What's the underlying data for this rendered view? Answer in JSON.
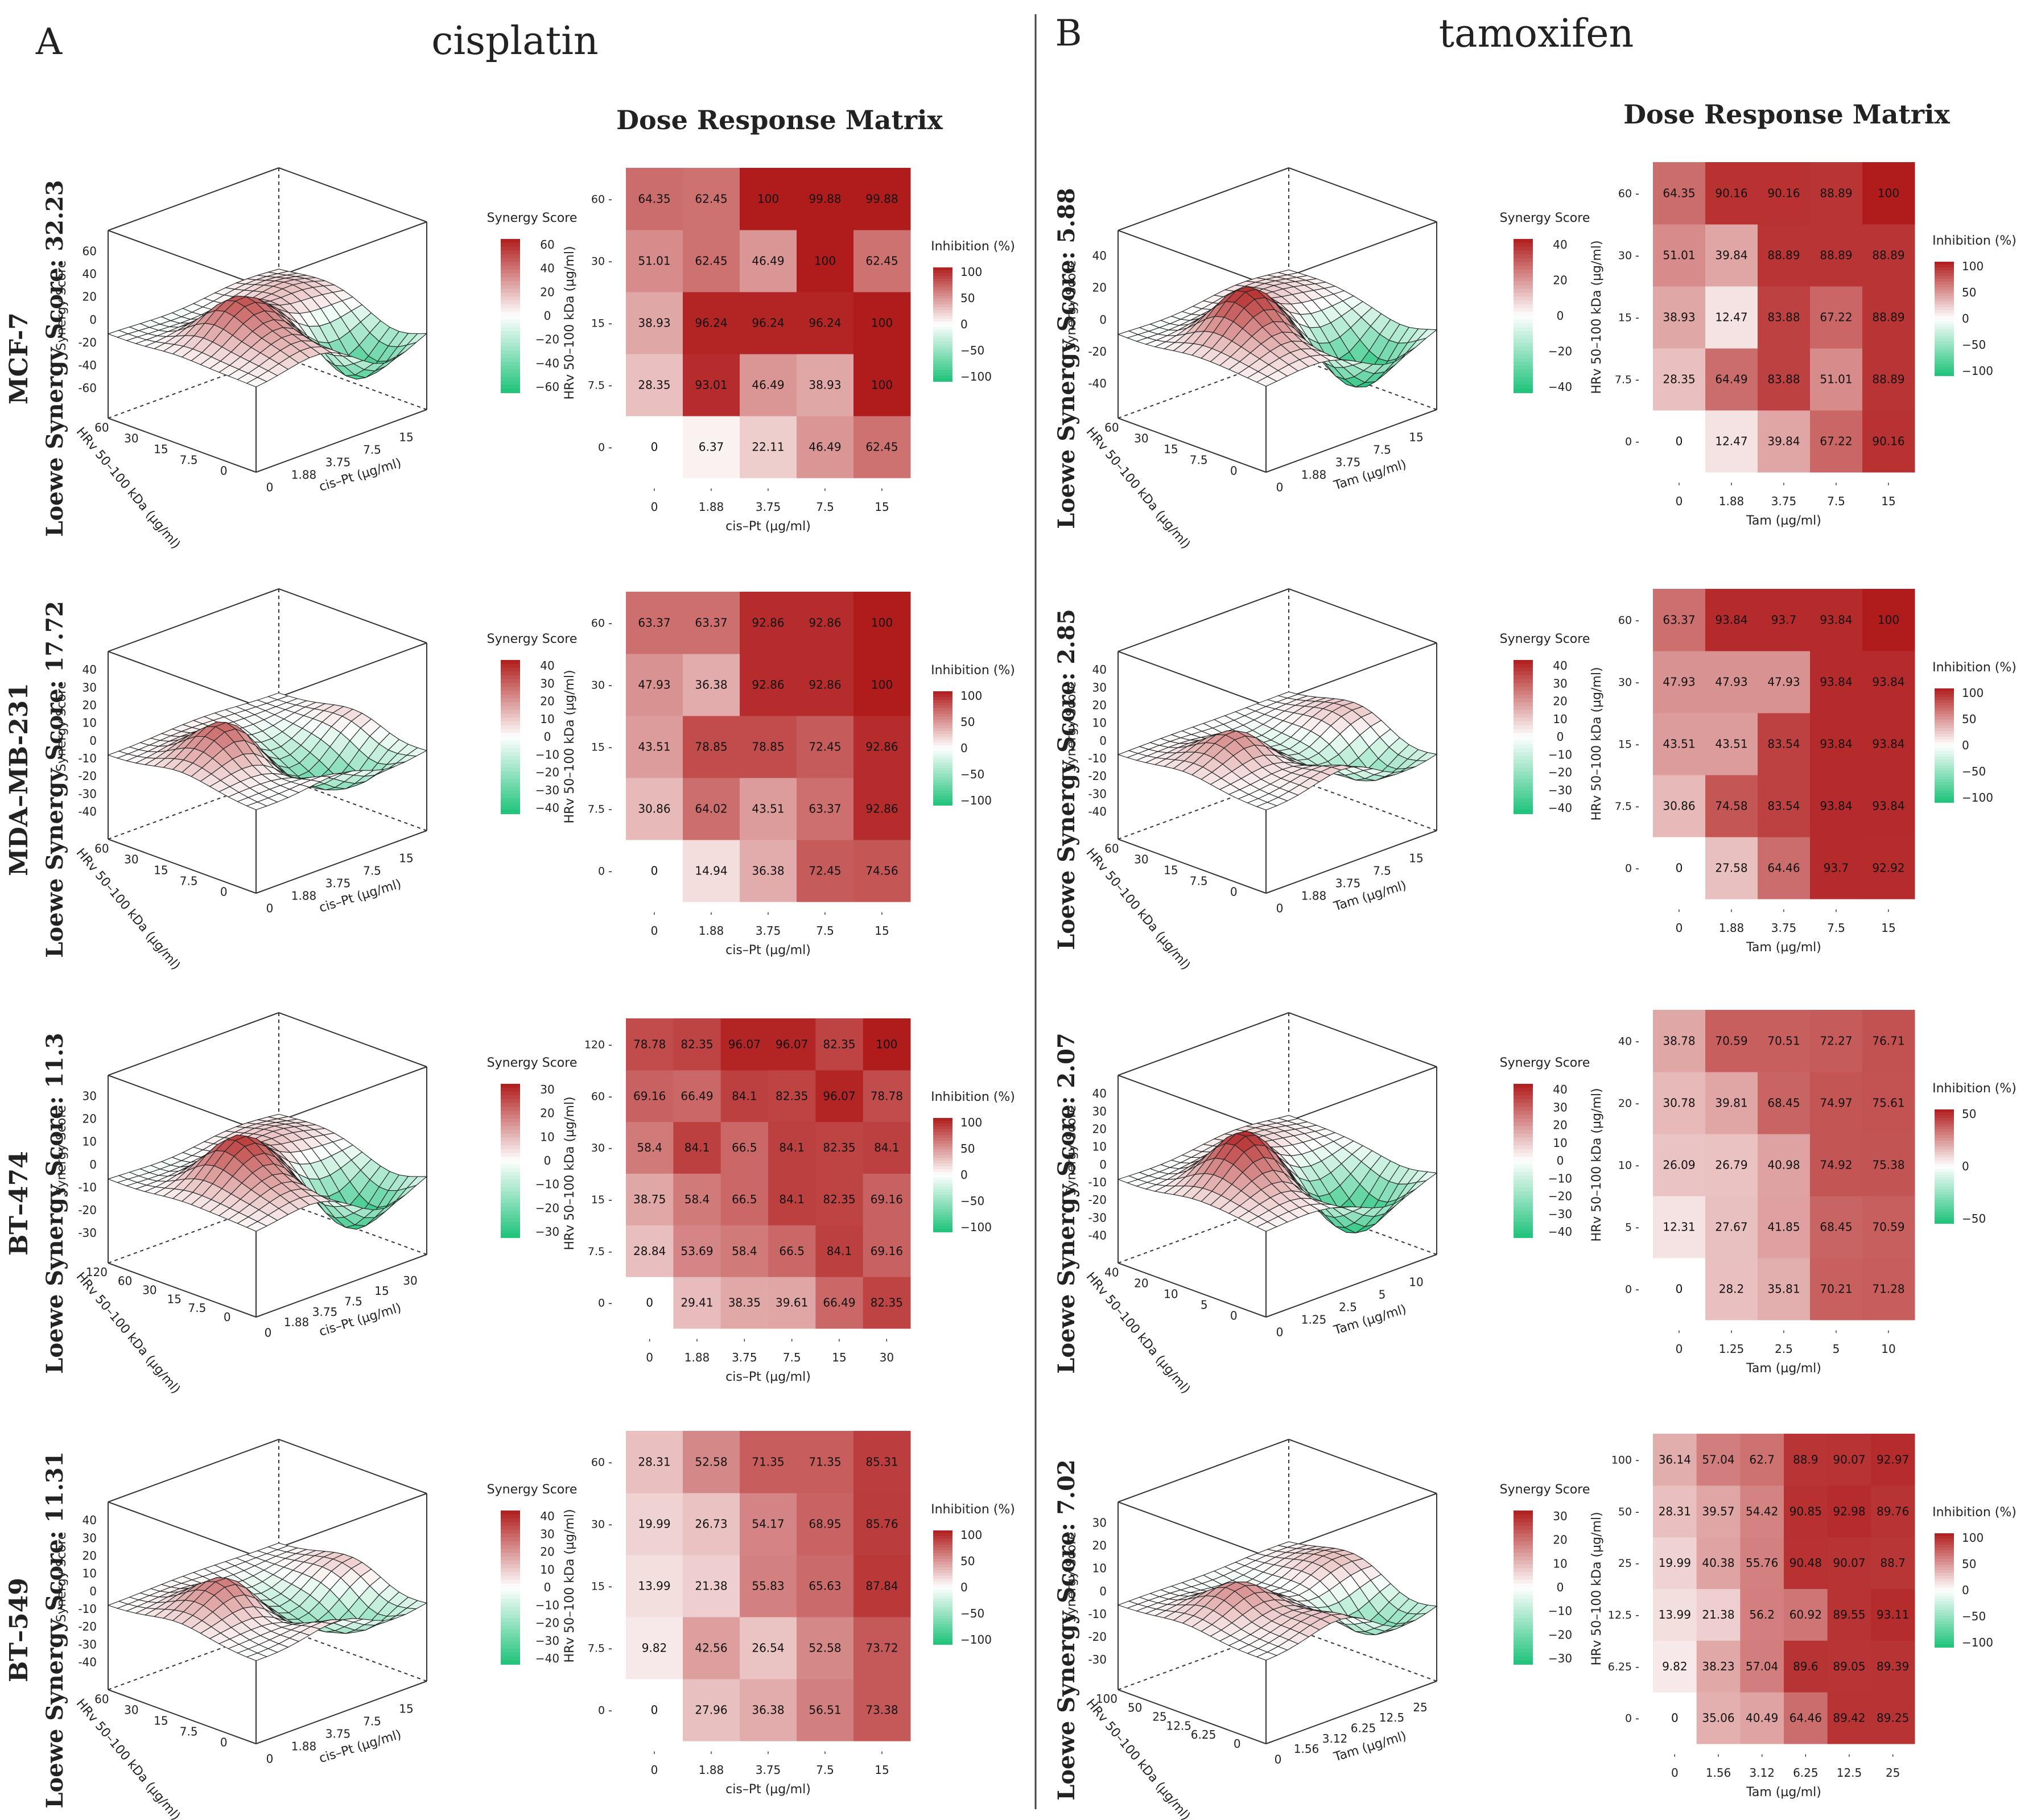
{
  "colors": {
    "heat_low": "#ffffff",
    "heat_high": "#b01c1c",
    "syn_pos": "#b01c1c",
    "syn_neg": "#1ec27a",
    "surface_line": "#222222",
    "axis": "#333333"
  },
  "panels": [
    {
      "letter": "A",
      "drug": "cisplatin"
    },
    {
      "letter": "B",
      "drug": "tamoxifen"
    }
  ],
  "chart_data": [
    {
      "type": "heatmap",
      "panel": "A",
      "cell_line": "MCF-7",
      "loewe_label": "Loewe Synergy Score: 32.23",
      "title": "Dose Response Matrix",
      "xlabel": "cis–Pt (µg/ml)",
      "ylabel": "HRv 50–100 kDa (µg/ml)",
      "x_ticks": [
        "0",
        "1.88",
        "3.75",
        "7.5",
        "15"
      ],
      "y_ticks": [
        "0",
        "7.5",
        "15",
        "30",
        "60"
      ],
      "values": [
        [
          0,
          6.37,
          22.11,
          46.49,
          62.45
        ],
        [
          28.35,
          93.01,
          46.49,
          38.93,
          100
        ],
        [
          38.93,
          96.24,
          96.24,
          96.24,
          100
        ],
        [
          51.01,
          62.45,
          46.49,
          100,
          62.45
        ],
        [
          64.35,
          62.45,
          100,
          99.88,
          99.88
        ]
      ],
      "colorbar": {
        "title": "Inhibition (%)",
        "ticks": [
          100,
          50,
          0,
          -50,
          -100
        ]
      },
      "surface": {
        "zlabel": "Synergy Score",
        "xlabel": "cis–Pt (µg/ml)",
        "ylabel": "HRv 50–100 kDa (µg/ml)",
        "z_ticks": [
          "60",
          "40",
          "20",
          "0",
          "-20",
          "-40",
          "-60"
        ],
        "x_ticks": [
          "0",
          "1.88",
          "3.75",
          "7.5",
          "15"
        ],
        "y_ticks": [
          "60",
          "30",
          "15",
          "7.5",
          "0"
        ],
        "colorbar_ticks": [
          "60",
          "40",
          "20",
          "0",
          "−20",
          "−40",
          "−60"
        ],
        "colorbar_title": "Synergy Score"
      }
    },
    {
      "type": "heatmap",
      "panel": "A",
      "cell_line": "MDA–MB-231",
      "loewe_label": "Loewe Synergy Score: 17.72",
      "title": "",
      "xlabel": "cis–Pt (µg/ml)",
      "ylabel": "HRv 50–100 kDa (µg/ml)",
      "x_ticks": [
        "0",
        "1.88",
        "3.75",
        "7.5",
        "15"
      ],
      "y_ticks": [
        "0",
        "7.5",
        "15",
        "30",
        "60"
      ],
      "values": [
        [
          0,
          14.94,
          36.38,
          72.45,
          74.56
        ],
        [
          30.86,
          64.02,
          43.51,
          63.37,
          92.86
        ],
        [
          43.51,
          78.85,
          78.85,
          72.45,
          92.86
        ],
        [
          47.93,
          36.38,
          92.86,
          92.86,
          100
        ],
        [
          63.37,
          63.37,
          92.86,
          92.86,
          100
        ]
      ],
      "colorbar": {
        "title": "Inhibition (%)",
        "ticks": [
          100,
          50,
          0,
          -50,
          -100
        ]
      },
      "surface": {
        "zlabel": "Synergy Score",
        "xlabel": "cis–Pt (µg/ml)",
        "ylabel": "HRv 50–100 kDa (µg/ml)",
        "z_ticks": [
          "40",
          "30",
          "20",
          "10",
          "0",
          "-10",
          "-20",
          "-30",
          "-40"
        ],
        "x_ticks": [
          "0",
          "1.88",
          "3.75",
          "7.5",
          "15"
        ],
        "y_ticks": [
          "60",
          "30",
          "15",
          "7.5",
          "0"
        ],
        "colorbar_ticks": [
          "40",
          "30",
          "20",
          "10",
          "0",
          "−10",
          "−20",
          "−30",
          "−40"
        ],
        "colorbar_title": "Synergy Score"
      }
    },
    {
      "type": "heatmap",
      "panel": "A",
      "cell_line": "BT–474",
      "loewe_label": "Loewe Synergy Score: 11.3",
      "title": "",
      "xlabel": "cis–Pt (µg/ml)",
      "ylabel": "HRv 50–100 kDa (µg/ml)",
      "x_ticks": [
        "0",
        "1.88",
        "3.75",
        "7.5",
        "15",
        "30"
      ],
      "y_ticks": [
        "0",
        "7.5",
        "15",
        "30",
        "60",
        "120"
      ],
      "values": [
        [
          0,
          29.41,
          38.35,
          39.61,
          66.49,
          82.35
        ],
        [
          28.84,
          53.69,
          58.4,
          66.5,
          84.1,
          69.16
        ],
        [
          38.75,
          58.4,
          66.5,
          84.1,
          82.35,
          69.16
        ],
        [
          58.4,
          84.1,
          66.5,
          84.1,
          82.35,
          84.1
        ],
        [
          69.16,
          66.49,
          84.1,
          82.35,
          96.07,
          78.78
        ],
        [
          78.78,
          82.35,
          96.07,
          96.07,
          82.35,
          100
        ]
      ],
      "colorbar": {
        "title": "Inhibition (%)",
        "ticks": [
          100,
          50,
          0,
          -50,
          -100
        ]
      },
      "surface": {
        "zlabel": "Synergy Score",
        "xlabel": "cis–Pt (µg/ml)",
        "ylabel": "HRv 50–100 kDa (µg/ml)",
        "z_ticks": [
          "30",
          "20",
          "10",
          "0",
          "-10",
          "-20",
          "-30"
        ],
        "x_ticks": [
          "0",
          "1.88",
          "3.75",
          "7.5",
          "15",
          "30"
        ],
        "y_ticks": [
          "120",
          "60",
          "30",
          "15",
          "7.5",
          "0"
        ],
        "colorbar_ticks": [
          "30",
          "20",
          "10",
          "0",
          "−10",
          "−20",
          "−30"
        ],
        "colorbar_title": "Synergy Score"
      }
    },
    {
      "type": "heatmap",
      "panel": "A",
      "cell_line": "BT–549",
      "loewe_label": "Loewe Synergy Score: 11.31",
      "title": "",
      "xlabel": "cis–Pt (µg/ml)",
      "ylabel": "HRv 50–100 kDa (µg/ml)",
      "x_ticks": [
        "0",
        "1.88",
        "3.75",
        "7.5",
        "15"
      ],
      "y_ticks": [
        "0",
        "7.5",
        "15",
        "30",
        "60"
      ],
      "values": [
        [
          0,
          27.96,
          36.38,
          56.51,
          73.38
        ],
        [
          9.82,
          42.56,
          26.54,
          52.58,
          73.72
        ],
        [
          13.99,
          21.38,
          55.83,
          65.63,
          87.84
        ],
        [
          19.99,
          26.73,
          54.17,
          68.95,
          85.76
        ],
        [
          28.31,
          52.58,
          71.35,
          71.35,
          85.31
        ]
      ],
      "colorbar": {
        "title": "Inhibition (%)",
        "ticks": [
          100,
          50,
          0,
          -50,
          -100
        ]
      },
      "surface": {
        "zlabel": "Synergy Score",
        "xlabel": "cis–Pt (µg/ml)",
        "ylabel": "HRv 50–100 kDa (µg/ml)",
        "z_ticks": [
          "40",
          "30",
          "20",
          "10",
          "0",
          "-10",
          "-20",
          "-30",
          "-40"
        ],
        "x_ticks": [
          "0",
          "1.88",
          "3.75",
          "7.5",
          "15"
        ],
        "y_ticks": [
          "60",
          "30",
          "15",
          "7.5",
          "0"
        ],
        "colorbar_ticks": [
          "40",
          "30",
          "20",
          "10",
          "0",
          "−10",
          "−20",
          "−30",
          "−40"
        ],
        "colorbar_title": "Synergy Score"
      }
    },
    {
      "type": "heatmap",
      "panel": "B",
      "cell_line": "",
      "loewe_label": "Loewe Synergy Score: 5.88",
      "title": "Dose Response Matrix",
      "xlabel": "Tam (µg/ml)",
      "ylabel": "HRv 50–100 kDa (µg/ml)",
      "x_ticks": [
        "0",
        "1.88",
        "3.75",
        "7.5",
        "15"
      ],
      "y_ticks": [
        "0",
        "7.5",
        "15",
        "30",
        "60"
      ],
      "values": [
        [
          0,
          12.47,
          39.84,
          67.22,
          90.16
        ],
        [
          28.35,
          64.49,
          83.88,
          51.01,
          88.89
        ],
        [
          38.93,
          12.47,
          83.88,
          67.22,
          88.89
        ],
        [
          51.01,
          39.84,
          88.89,
          88.89,
          88.89
        ],
        [
          64.35,
          90.16,
          90.16,
          88.89,
          100
        ]
      ],
      "colorbar": {
        "title": "Inhibition (%)",
        "ticks": [
          100,
          50,
          0,
          -50,
          -100
        ]
      },
      "surface": {
        "zlabel": "Synergy Score",
        "xlabel": "Tam (µg/ml)",
        "ylabel": "HRv 50–100 kDa (µg/ml)",
        "z_ticks": [
          "40",
          "20",
          "0",
          "-20",
          "-40"
        ],
        "x_ticks": [
          "0",
          "1.88",
          "3.75",
          "7.5",
          "15"
        ],
        "y_ticks": [
          "60",
          "30",
          "15",
          "7.5",
          "0"
        ],
        "colorbar_ticks": [
          "40",
          "20",
          "0",
          "−20",
          "−40"
        ],
        "colorbar_title": "Synergy Score"
      }
    },
    {
      "type": "heatmap",
      "panel": "B",
      "cell_line": "",
      "loewe_label": "Loewe Synergy Score: 2.85",
      "title": "",
      "xlabel": "Tam (µg/ml)",
      "ylabel": "HRv 50–100 kDa (µg/ml)",
      "x_ticks": [
        "0",
        "1.88",
        "3.75",
        "7.5",
        "15"
      ],
      "y_ticks": [
        "0",
        "7.5",
        "15",
        "30",
        "60"
      ],
      "values": [
        [
          0,
          27.58,
          64.46,
          93.7,
          92.92
        ],
        [
          30.86,
          74.58,
          83.54,
          93.84,
          93.84
        ],
        [
          43.51,
          43.51,
          83.54,
          93.84,
          93.84
        ],
        [
          47.93,
          47.93,
          47.93,
          93.84,
          93.84
        ],
        [
          63.37,
          93.84,
          93.7,
          93.84,
          100
        ]
      ],
      "colorbar": {
        "title": "Inhibition (%)",
        "ticks": [
          100,
          50,
          0,
          -50,
          -100
        ]
      },
      "surface": {
        "zlabel": "Synergy Score",
        "xlabel": "Tam (µg/ml)",
        "ylabel": "HRv 50–100 kDa (µg/ml)",
        "z_ticks": [
          "40",
          "30",
          "20",
          "10",
          "0",
          "-10",
          "-20",
          "-30",
          "-40"
        ],
        "x_ticks": [
          "0",
          "1.88",
          "3.75",
          "7.5",
          "15"
        ],
        "y_ticks": [
          "60",
          "30",
          "15",
          "7.5",
          "0"
        ],
        "colorbar_ticks": [
          "40",
          "30",
          "20",
          "10",
          "0",
          "−10",
          "−20",
          "−30",
          "−40"
        ],
        "colorbar_title": "Synergy Score"
      }
    },
    {
      "type": "heatmap",
      "panel": "B",
      "cell_line": "",
      "loewe_label": "Loewe Synergy Score: 2.07",
      "title": "",
      "xlabel": "Tam (µg/ml)",
      "ylabel": "HRv 50–100 kDa (µg/ml)",
      "x_ticks": [
        "0",
        "1.25",
        "2.5",
        "5",
        "10"
      ],
      "y_ticks": [
        "0",
        "5",
        "10",
        "20",
        "40"
      ],
      "values": [
        [
          0,
          28.2,
          35.81,
          70.21,
          71.28
        ],
        [
          12.31,
          27.67,
          41.85,
          68.45,
          70.59
        ],
        [
          26.09,
          26.79,
          40.98,
          74.92,
          75.38
        ],
        [
          30.78,
          39.81,
          68.45,
          74.97,
          75.61
        ],
        [
          38.78,
          70.59,
          70.51,
          72.27,
          76.71
        ]
      ],
      "colorbar": {
        "title": "Inhibition (%)",
        "ticks": [
          50,
          0,
          -50
        ]
      },
      "surface": {
        "zlabel": "Synergy Score",
        "xlabel": "Tam (µg/ml)",
        "ylabel": "HRv 50–100 kDa (µg/ml)",
        "z_ticks": [
          "40",
          "30",
          "20",
          "10",
          "0",
          "-10",
          "-20",
          "-30",
          "-40"
        ],
        "x_ticks": [
          "0",
          "1.25",
          "2.5",
          "5",
          "10"
        ],
        "y_ticks": [
          "40",
          "20",
          "10",
          "5",
          "0"
        ],
        "colorbar_ticks": [
          "40",
          "30",
          "20",
          "10",
          "0",
          "−10",
          "−20",
          "−30",
          "−40"
        ],
        "colorbar_title": "Synergy Score"
      }
    },
    {
      "type": "heatmap",
      "panel": "B",
      "cell_line": "",
      "loewe_label": "Loewe Synergy Score: 7.02",
      "title": "",
      "xlabel": "Tam (µg/ml)",
      "ylabel": "HRv 50–100 kDa (µg/ml)",
      "x_ticks": [
        "0",
        "1.56",
        "3.12",
        "6.25",
        "12.5",
        "25"
      ],
      "y_ticks": [
        "0",
        "6.25",
        "12.5",
        "25",
        "50",
        "100"
      ],
      "values": [
        [
          0,
          35.06,
          40.49,
          64.46,
          89.42,
          89.25
        ],
        [
          9.82,
          38.23,
          57.04,
          89.6,
          89.05,
          89.39
        ],
        [
          13.99,
          21.38,
          56.2,
          60.92,
          89.55,
          93.11
        ],
        [
          19.99,
          40.38,
          55.76,
          90.48,
          90.07,
          88.7
        ],
        [
          28.31,
          39.57,
          54.42,
          90.85,
          92.98,
          89.76
        ],
        [
          36.14,
          57.04,
          62.7,
          88.9,
          90.07,
          92.97
        ]
      ],
      "colorbar": {
        "title": "Inhibition (%)",
        "ticks": [
          100,
          50,
          0,
          -50,
          -100
        ]
      },
      "surface": {
        "zlabel": "Synergy Score",
        "xlabel": "Tam (µg/ml)",
        "ylabel": "HRv 50–100 kDa (µg/ml)",
        "z_ticks": [
          "30",
          "20",
          "10",
          "0",
          "-10",
          "-20",
          "-30"
        ],
        "x_ticks": [
          "0",
          "1.56",
          "3.12",
          "6.25",
          "12.5",
          "25"
        ],
        "y_ticks": [
          "100",
          "50",
          "25",
          "12.5",
          "6.25",
          "0"
        ],
        "colorbar_ticks": [
          "30",
          "20",
          "10",
          "0",
          "−10",
          "−20",
          "−30"
        ],
        "colorbar_title": "Synergy Score"
      }
    }
  ]
}
